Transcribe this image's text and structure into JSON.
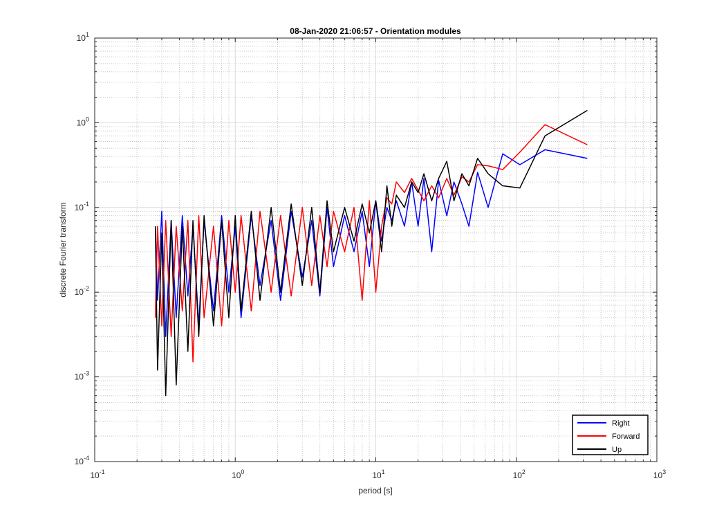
{
  "chart_data": {
    "type": "line",
    "title": "08-Jan-2020 21:06:57 - Orientation modules",
    "xlabel": "period [s]",
    "ylabel": "discrete Fourier transform",
    "xscale": "log",
    "yscale": "log",
    "xlim": [
      0.1,
      1000
    ],
    "ylim": [
      0.0001,
      10
    ],
    "grid": true,
    "minor_grid": true,
    "legend_position": "bottom-right",
    "xticks": [
      {
        "base": "10",
        "exp": "-1"
      },
      {
        "base": "10",
        "exp": "0"
      },
      {
        "base": "10",
        "exp": "1"
      },
      {
        "base": "10",
        "exp": "2"
      },
      {
        "base": "10",
        "exp": "3"
      }
    ],
    "yticks": [
      {
        "base": "10",
        "exp": "-4"
      },
      {
        "base": "10",
        "exp": "-3"
      },
      {
        "base": "10",
        "exp": "-2"
      },
      {
        "base": "10",
        "exp": "-1"
      },
      {
        "base": "10",
        "exp": "0"
      },
      {
        "base": "10",
        "exp": "1"
      }
    ],
    "series": [
      {
        "name": "Right",
        "color": "#0000ff",
        "x": [
          0.27,
          0.28,
          0.3,
          0.32,
          0.35,
          0.38,
          0.42,
          0.46,
          0.5,
          0.55,
          0.6,
          0.7,
          0.8,
          0.9,
          1.0,
          1.1,
          1.3,
          1.5,
          1.8,
          2.1,
          2.5,
          3.0,
          3.5,
          4.0,
          4.5,
          5.0,
          6.0,
          7.0,
          8.0,
          9.0,
          10.0,
          11.0,
          12.0,
          13.0,
          14.0,
          16.0,
          18.0,
          20.0,
          22.0,
          25.0,
          28.0,
          32.0,
          36.0,
          41.0,
          46.0,
          53.0,
          63.0,
          80.0,
          106.0,
          160.0,
          320.0
        ],
        "y": [
          0.06,
          0.008,
          0.09,
          0.003,
          0.07,
          0.005,
          0.08,
          0.009,
          0.06,
          0.004,
          0.07,
          0.006,
          0.08,
          0.01,
          0.06,
          0.005,
          0.08,
          0.012,
          0.07,
          0.008,
          0.09,
          0.015,
          0.07,
          0.009,
          0.1,
          0.02,
          0.08,
          0.03,
          0.09,
          0.02,
          0.12,
          0.04,
          0.1,
          0.07,
          0.12,
          0.06,
          0.2,
          0.06,
          0.22,
          0.03,
          0.21,
          0.08,
          0.2,
          0.11,
          0.06,
          0.26,
          0.1,
          0.43,
          0.32,
          0.48,
          0.38
        ]
      },
      {
        "name": "Forward",
        "color": "#ff0000",
        "x": [
          0.27,
          0.28,
          0.3,
          0.32,
          0.35,
          0.38,
          0.42,
          0.46,
          0.5,
          0.55,
          0.6,
          0.7,
          0.8,
          0.9,
          1.0,
          1.1,
          1.3,
          1.5,
          1.8,
          2.1,
          2.5,
          3.0,
          3.5,
          4.0,
          4.5,
          5.0,
          6.0,
          7.0,
          8.0,
          9.0,
          10.0,
          11.0,
          12.0,
          13.0,
          14.0,
          16.0,
          18.0,
          20.0,
          22.0,
          25.0,
          28.0,
          32.0,
          36.0,
          41.0,
          46.0,
          53.0,
          63.0,
          80.0,
          106.0,
          160.0,
          320.0
        ],
        "y": [
          0.005,
          0.06,
          0.004,
          0.07,
          0.003,
          0.06,
          0.006,
          0.07,
          0.0015,
          0.08,
          0.005,
          0.06,
          0.004,
          0.07,
          0.01,
          0.08,
          0.006,
          0.09,
          0.01,
          0.08,
          0.009,
          0.1,
          0.012,
          0.08,
          0.02,
          0.09,
          0.03,
          0.1,
          0.008,
          0.12,
          0.01,
          0.06,
          0.13,
          0.11,
          0.2,
          0.15,
          0.22,
          0.16,
          0.12,
          0.18,
          0.13,
          0.22,
          0.14,
          0.23,
          0.2,
          0.32,
          0.31,
          0.28,
          0.45,
          0.95,
          0.55
        ]
      },
      {
        "name": "Up",
        "color": "#000000",
        "x": [
          0.27,
          0.28,
          0.3,
          0.32,
          0.35,
          0.38,
          0.42,
          0.46,
          0.5,
          0.55,
          0.6,
          0.7,
          0.8,
          0.9,
          1.0,
          1.1,
          1.3,
          1.5,
          1.8,
          2.1,
          2.5,
          3.0,
          3.5,
          4.0,
          4.5,
          5.0,
          6.0,
          7.0,
          8.0,
          9.0,
          10.0,
          11.0,
          12.0,
          13.0,
          14.0,
          16.0,
          18.0,
          20.0,
          22.0,
          25.0,
          28.0,
          32.0,
          36.0,
          41.0,
          46.0,
          53.0,
          63.0,
          80.0,
          106.0,
          160.0,
          320.0
        ],
        "y": [
          0.06,
          0.0012,
          0.05,
          0.0006,
          0.07,
          0.0008,
          0.06,
          0.002,
          0.07,
          0.003,
          0.08,
          0.004,
          0.07,
          0.005,
          0.08,
          0.006,
          0.09,
          0.008,
          0.1,
          0.01,
          0.11,
          0.012,
          0.1,
          0.01,
          0.12,
          0.03,
          0.1,
          0.04,
          0.11,
          0.05,
          0.12,
          0.03,
          0.18,
          0.06,
          0.14,
          0.1,
          0.2,
          0.15,
          0.25,
          0.12,
          0.22,
          0.35,
          0.12,
          0.25,
          0.18,
          0.38,
          0.25,
          0.18,
          0.17,
          0.7,
          1.4
        ]
      }
    ]
  }
}
